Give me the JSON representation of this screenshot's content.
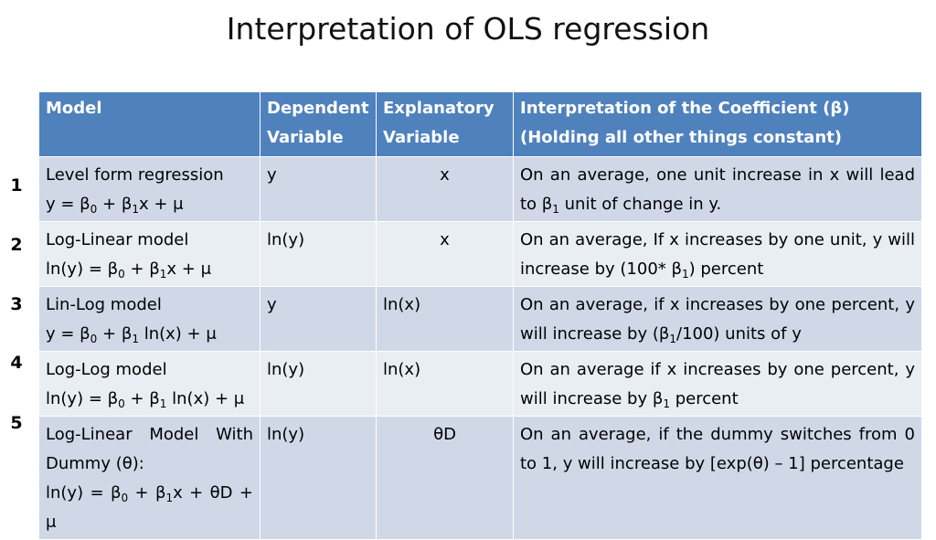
{
  "title": "Interpretation of OLS regression",
  "table": {
    "headers": [
      "Model",
      "Dependent Variable",
      "Explanatory Variable",
      "Interpretation of the Coefficient (β) (Holding all other things constant)"
    ],
    "rows": [
      {
        "number": "1",
        "model_name": "Level form regression",
        "model_eq": [
          "y = β",
          "0",
          " + β",
          "1",
          "x + μ"
        ],
        "dependent": "y",
        "explanatory": "x",
        "interp": [
          "On an average, one unit increase in x will lead to β",
          "1",
          " unit of change in y."
        ]
      },
      {
        "number": "2",
        "model_name": "Log-Linear model",
        "model_eq": [
          "ln(y) = β",
          "0",
          " + β",
          "1",
          "x + μ"
        ],
        "dependent": "ln(y)",
        "explanatory": "x",
        "interp": [
          "On an average, If x increases by one unit, y will increase by (100* β",
          "1",
          ") percent"
        ]
      },
      {
        "number": "3",
        "model_name": "Lin-Log model",
        "model_eq": [
          "y = β",
          "0",
          " + β",
          "1",
          " ln(x) + μ"
        ],
        "dependent": "y",
        "explanatory": "ln(x)",
        "interp": [
          "On an average, if x increases by one percent, y will increase by (β",
          "1",
          "/100) units of y"
        ]
      },
      {
        "number": "4",
        "model_name": "Log-Log model",
        "model_eq": [
          "ln(y) = β",
          "0",
          " + β",
          "1",
          " ln(x) + μ"
        ],
        "dependent": "ln(y)",
        "explanatory": "ln(x)",
        "interp": [
          "On an average if x increases by one percent, y will increase by β",
          "1",
          " percent"
        ]
      },
      {
        "number": "5",
        "model_name": "Log-Linear Model With Dummy (θ):",
        "model_eq": [
          "ln(y) = β",
          "0",
          " + β",
          "1",
          "x + θD + μ"
        ],
        "dependent": "ln(y)",
        "explanatory": "θD",
        "interp": [
          "On an average, if the dummy switches from 0 to 1, y will increase by [exp(θ) – 1] percentage",
          "",
          ""
        ]
      }
    ]
  },
  "colors": {
    "header_bg": "#4f81bd",
    "row_odd_bg": "#d0d8e8",
    "row_even_bg": "#e9edf4"
  }
}
